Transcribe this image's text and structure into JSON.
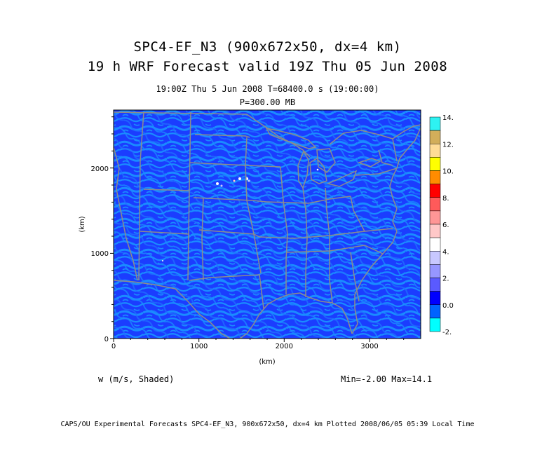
{
  "title": {
    "line1": "SPC4-EF_N3 (900x672x50, dx=4 km)",
    "line2": "19 h WRF Forecast valid 19Z Thu 05 Jun 2008"
  },
  "subtitle": {
    "time_line": "19:00Z Thu  5 Jun 2008     T=68400.0 s (19:00:00)",
    "level": "P=300.00 MB"
  },
  "axes": {
    "x_label": "(km)",
    "y_label": "(km)",
    "x_ticks": [
      "0",
      "1000",
      "2000",
      "3000"
    ],
    "y_ticks": [
      "0",
      "1000",
      "2000"
    ],
    "x_range_km": [
      0,
      3600
    ],
    "y_range_km": [
      0,
      2680
    ]
  },
  "colorbar": {
    "labels": [
      "14.",
      "12.",
      "10.",
      "8.",
      "6.",
      "4.",
      "2.",
      "0.0",
      "-2."
    ],
    "colors": [
      "#2ef2f2",
      "#d2ae5a",
      "#ffdc96",
      "#ffff00",
      "#ff8c00",
      "#ff0000",
      "#ff5a5a",
      "#ff9696",
      "#ffc8c8",
      "#ffffff",
      "#c8c8ff",
      "#9696ff",
      "#5a5aff",
      "#0000ff",
      "#0064ff",
      "#00ffff"
    ]
  },
  "field_label": "w (m/s, Shaded)",
  "stats": "Min=-2.00 Max=14.1",
  "credit": "CAPS/OU Experimental Forecasts  SPC4-EF_N3, 900x672x50, dx=4 km  Plotted 2008/06/05 05:39 Local Time",
  "colors": {
    "background_field": "#1b3dff",
    "pattern_field": "#1a8cff",
    "boundaries": "#8c8c8c"
  }
}
